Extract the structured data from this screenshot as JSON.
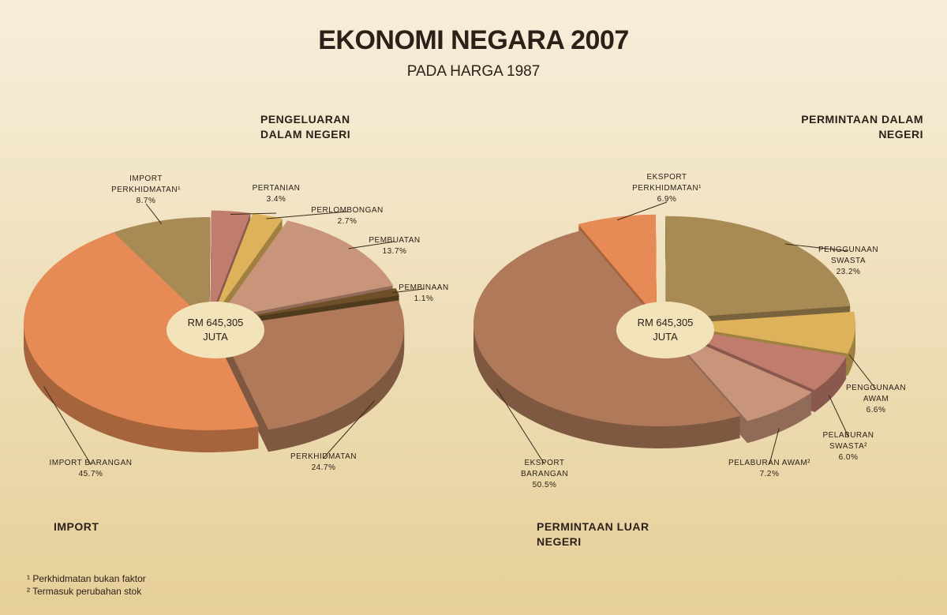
{
  "title": "EKONOMI NEGARA 2007",
  "subtitle": "PADA HARGA 1987",
  "footnotes": [
    "¹ Perkhidmatan bukan faktor",
    "² Termasuk perubahan stok"
  ],
  "chart_data": [
    {
      "type": "pie",
      "center_label": "RM 645,305 JUTA",
      "group_labels": [
        "PENGELUARAN DALAM NEGERI",
        "IMPORT"
      ],
      "categories": [
        "IMPORT PERKHIDMATAN¹",
        "PERTANIAN",
        "PERLOMBONGAN",
        "PEMBUATAN",
        "PEMBINAAN",
        "PERKHIDMATAN",
        "IMPORT BARANGAN"
      ],
      "values": [
        8.7,
        3.4,
        2.7,
        13.7,
        1.1,
        24.7,
        45.7
      ],
      "value_labels": [
        "8.7%",
        "3.4%",
        "2.7%",
        "13.7%",
        "1.1%",
        "24.7%",
        "45.7%"
      ],
      "colors": [
        "#a88a55",
        "#c07c6c",
        "#ddb25a",
        "#c9957a",
        "#6e5028",
        "#b07a5a",
        "#e68b55"
      ]
    },
    {
      "type": "pie",
      "center_label": "RM 645,305 JUTA",
      "group_labels": [
        "PERMINTAAN DALAM NEGERI",
        "PERMINTAAN LUAR NEGERI"
      ],
      "categories": [
        "EKSPORT PERKHIDMATAN¹",
        "PENGGUNAAN SWASTA",
        "PENGGUNAAN AWAM",
        "PELABURAN SWASTA²",
        "PELABURAN AWAM²",
        "EKSPORT BARANGAN"
      ],
      "values": [
        6.9,
        23.2,
        6.6,
        6.0,
        7.2,
        50.5
      ],
      "value_labels": [
        "6.9%",
        "23.2%",
        "6.6%",
        "6.0%",
        "7.2%",
        "50.5%"
      ],
      "colors": [
        "#e68b55",
        "#a88a55",
        "#ddb25a",
        "#c07c6c",
        "#c9957a",
        "#b07a5a"
      ]
    }
  ]
}
